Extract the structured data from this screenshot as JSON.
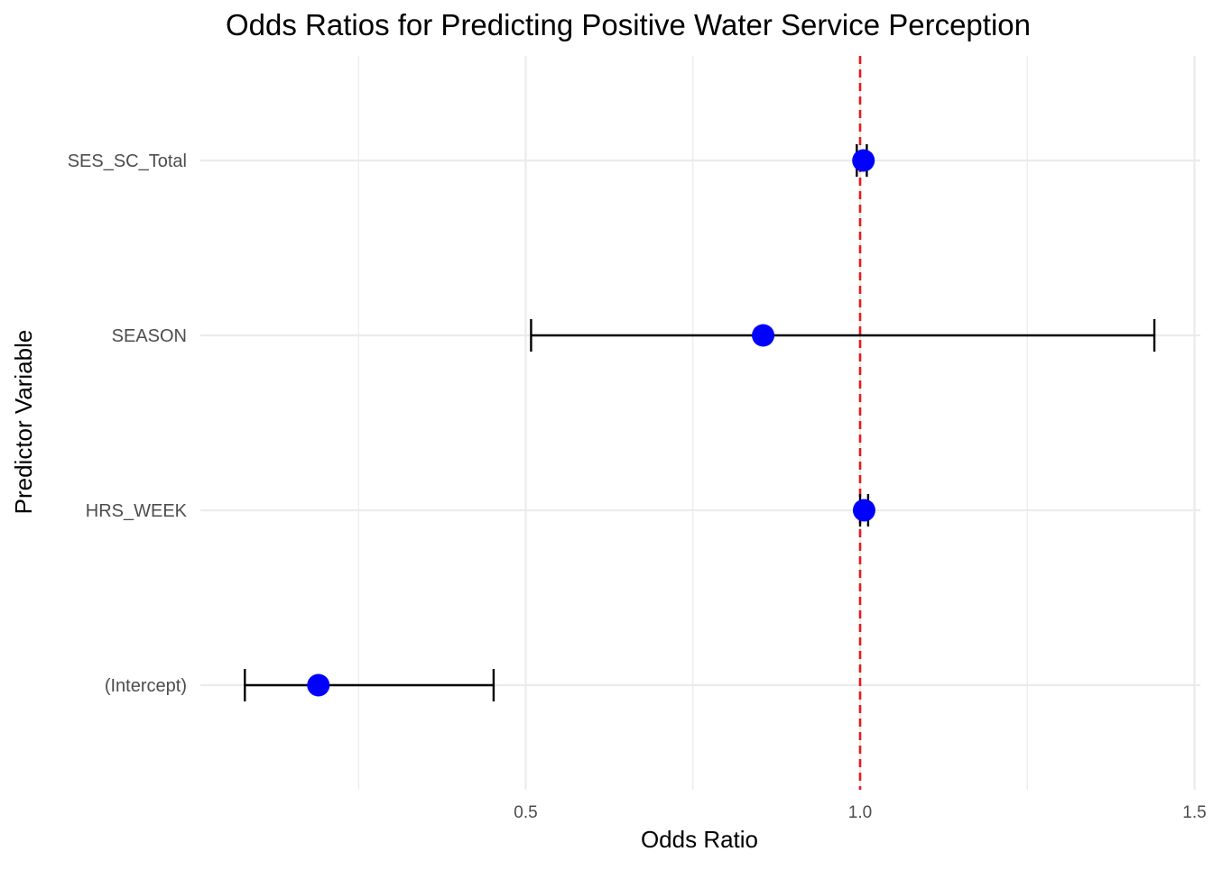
{
  "chart_data": {
    "type": "forest",
    "title": "Odds Ratios for Predicting Positive Water Service Perception",
    "xlabel": "Odds Ratio",
    "ylabel": "Predictor Variable",
    "xlim": [
      0,
      1.5
    ],
    "x_major_ticks": [
      0.5,
      1.0,
      1.5
    ],
    "x_tick_labels": [
      "0.5",
      "1.0",
      "1.5"
    ],
    "x_minor_ticks": [
      0.25,
      0.75,
      1.25
    ],
    "reference_line": {
      "x": 1.0,
      "color": "#e41a1c",
      "style": "dashed"
    },
    "point_color": "#0000ff",
    "errorbar_color": "#000000",
    "grid": true,
    "legend": "none",
    "rows": [
      {
        "label": "SES_SC_Total",
        "estimate": 1.005,
        "lower": 0.995,
        "upper": 1.01
      },
      {
        "label": "SEASON",
        "estimate": 0.855,
        "lower": 0.508,
        "upper": 1.44
      },
      {
        "label": "HRS_WEEK",
        "estimate": 1.006,
        "lower": 1.0,
        "upper": 1.012
      },
      {
        "label": "(Intercept)",
        "estimate": 0.19,
        "lower": 0.08,
        "upper": 0.452
      }
    ]
  }
}
